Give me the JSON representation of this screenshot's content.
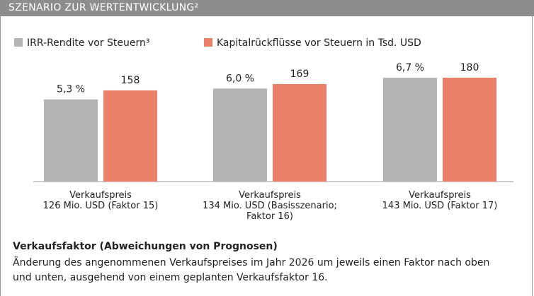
{
  "chart_data": {
    "type": "bar",
    "title": "SZENARIO ZUR WERTENTWICKLUNG²",
    "categories": [
      "Verkaufspreis\n126 Mio. USD (Faktor 15)",
      "Verkaufspreis\n134 Mio. USD (Basisszenario;\nFaktor 16)",
      "Verkaufspreis\n143 Mio. USD (Faktor 17)"
    ],
    "series": [
      {
        "name": "IRR-Rendite vor Steuern³",
        "color": "#b2b3b5",
        "values": [
          5.3,
          6.0,
          6.7
        ],
        "value_labels": [
          "5,3 %",
          "6,0 %",
          "6,7 %"
        ]
      },
      {
        "name": "Kapitalrückflüsse vor Steuern in Tsd. USD",
        "color": "#e9816a",
        "axis": "y2",
        "values": [
          158,
          169,
          180
        ]
      }
    ],
    "note_title": "Verkaufsfaktor (Abweichungen von Prognosen)",
    "note_text": "Änderung des angenommenen Verkaufspreises im Jahr 2026 um jeweils einen Faktor nach oben und unten, ausgehend von einem geplanten Verkaufsfaktor 16."
  }
}
